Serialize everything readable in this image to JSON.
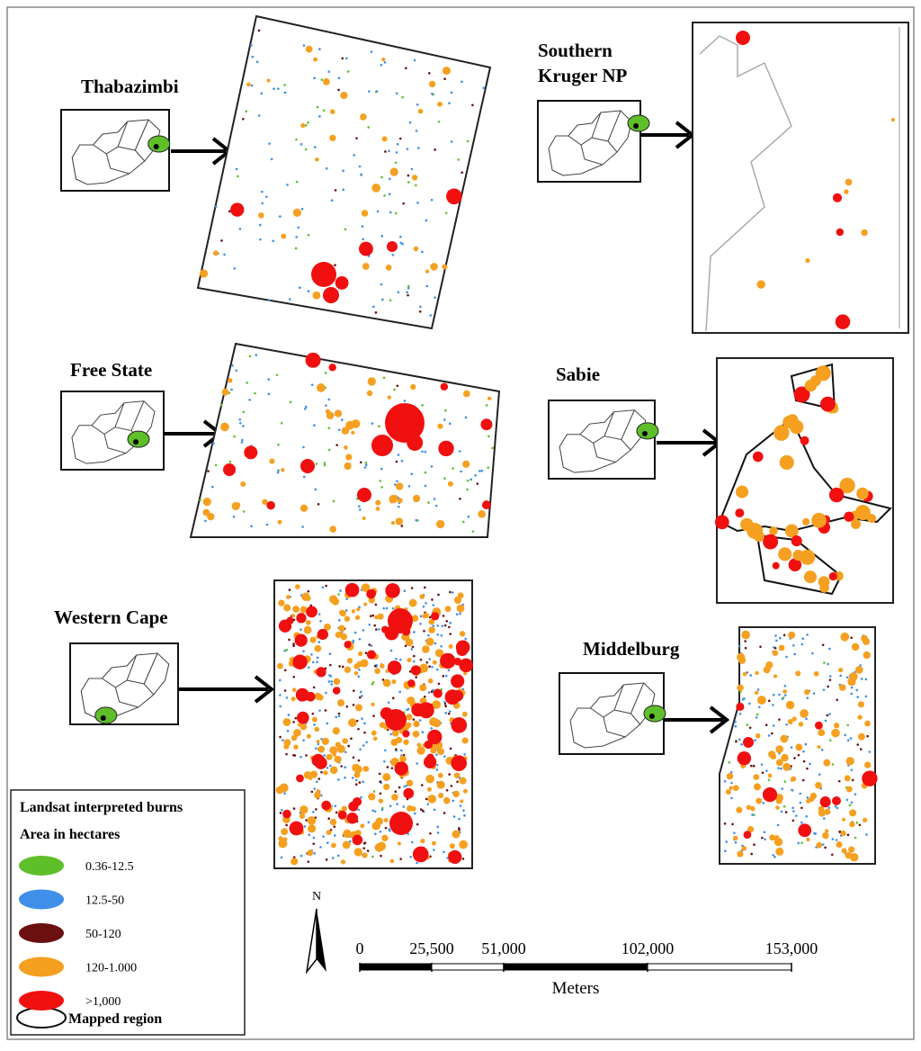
{
  "panels": [
    {
      "label": [
        "Thabazimbi"
      ]
    },
    {
      "label": [
        "Southern",
        "Kruger NP"
      ]
    },
    {
      "label": [
        "Free State"
      ]
    },
    {
      "label": [
        "Sabie"
      ]
    },
    {
      "label": [
        "Western Cape"
      ]
    },
    {
      "label": [
        "Middelburg"
      ]
    }
  ],
  "legend": {
    "title": "Landsat interpreted burns",
    "subtitle": "Area in hectares",
    "items": [
      {
        "label": "0.36-12.5",
        "color": "#5fbf2a"
      },
      {
        "label": "12.5-50",
        "color": "#3f8fe8"
      },
      {
        "label": "50-120",
        "color": "#6b1010"
      },
      {
        "label": "120-1.000",
        "color": "#f5a020"
      },
      {
        "label": ">1,000",
        "color": "#f01010"
      }
    ],
    "mapped_region": "Mapped region"
  },
  "north": "N",
  "scale": {
    "ticks": [
      0,
      {
        "value": 25500,
        "label": "25,500"
      },
      {
        "value": 51000,
        "label": "51,000"
      },
      {
        "value": 102000,
        "label": "102,000"
      },
      {
        "value": 153000,
        "label": "153,000"
      }
    ],
    "unit": "Meters"
  }
}
